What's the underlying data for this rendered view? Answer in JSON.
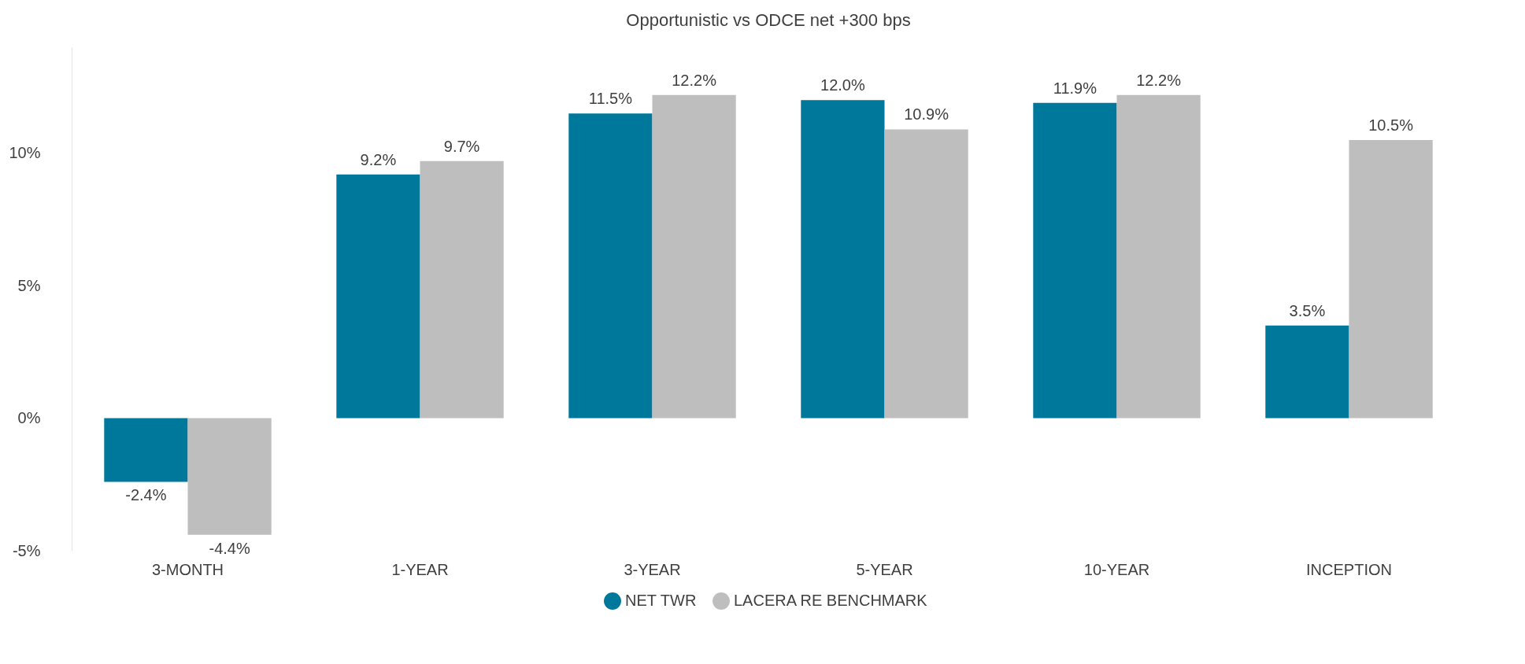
{
  "chart_data": {
    "type": "bar",
    "title": "Opportunistic vs ODCE net +300 bps",
    "categories": [
      "3-MONTH",
      "1-YEAR",
      "3-YEAR",
      "5-YEAR",
      "10-YEAR",
      "INCEPTION"
    ],
    "series": [
      {
        "name": "NET TWR",
        "color": "#00789c",
        "values": [
          -2.4,
          9.2,
          11.5,
          12.0,
          11.9,
          3.5
        ],
        "value_labels": [
          "-2.4%",
          "9.2%",
          "11.5%",
          "12.0%",
          "11.9%",
          "3.5%"
        ]
      },
      {
        "name": "LACERA RE BENCHMARK",
        "color": "#bdbebd",
        "values": [
          -4.4,
          9.7,
          12.2,
          10.9,
          12.2,
          10.5
        ],
        "value_labels": [
          "-4.4%",
          "9.7%",
          "12.2%",
          "10.9%",
          "12.2%",
          "10.5%"
        ]
      }
    ],
    "ylim": [
      -5,
      14
    ],
    "yticks": [
      {
        "value": -5,
        "label": "-5%"
      },
      {
        "value": 0,
        "label": "0%"
      },
      {
        "value": 5,
        "label": "5%"
      },
      {
        "value": 10,
        "label": "10%"
      }
    ],
    "legend": "bottom"
  }
}
